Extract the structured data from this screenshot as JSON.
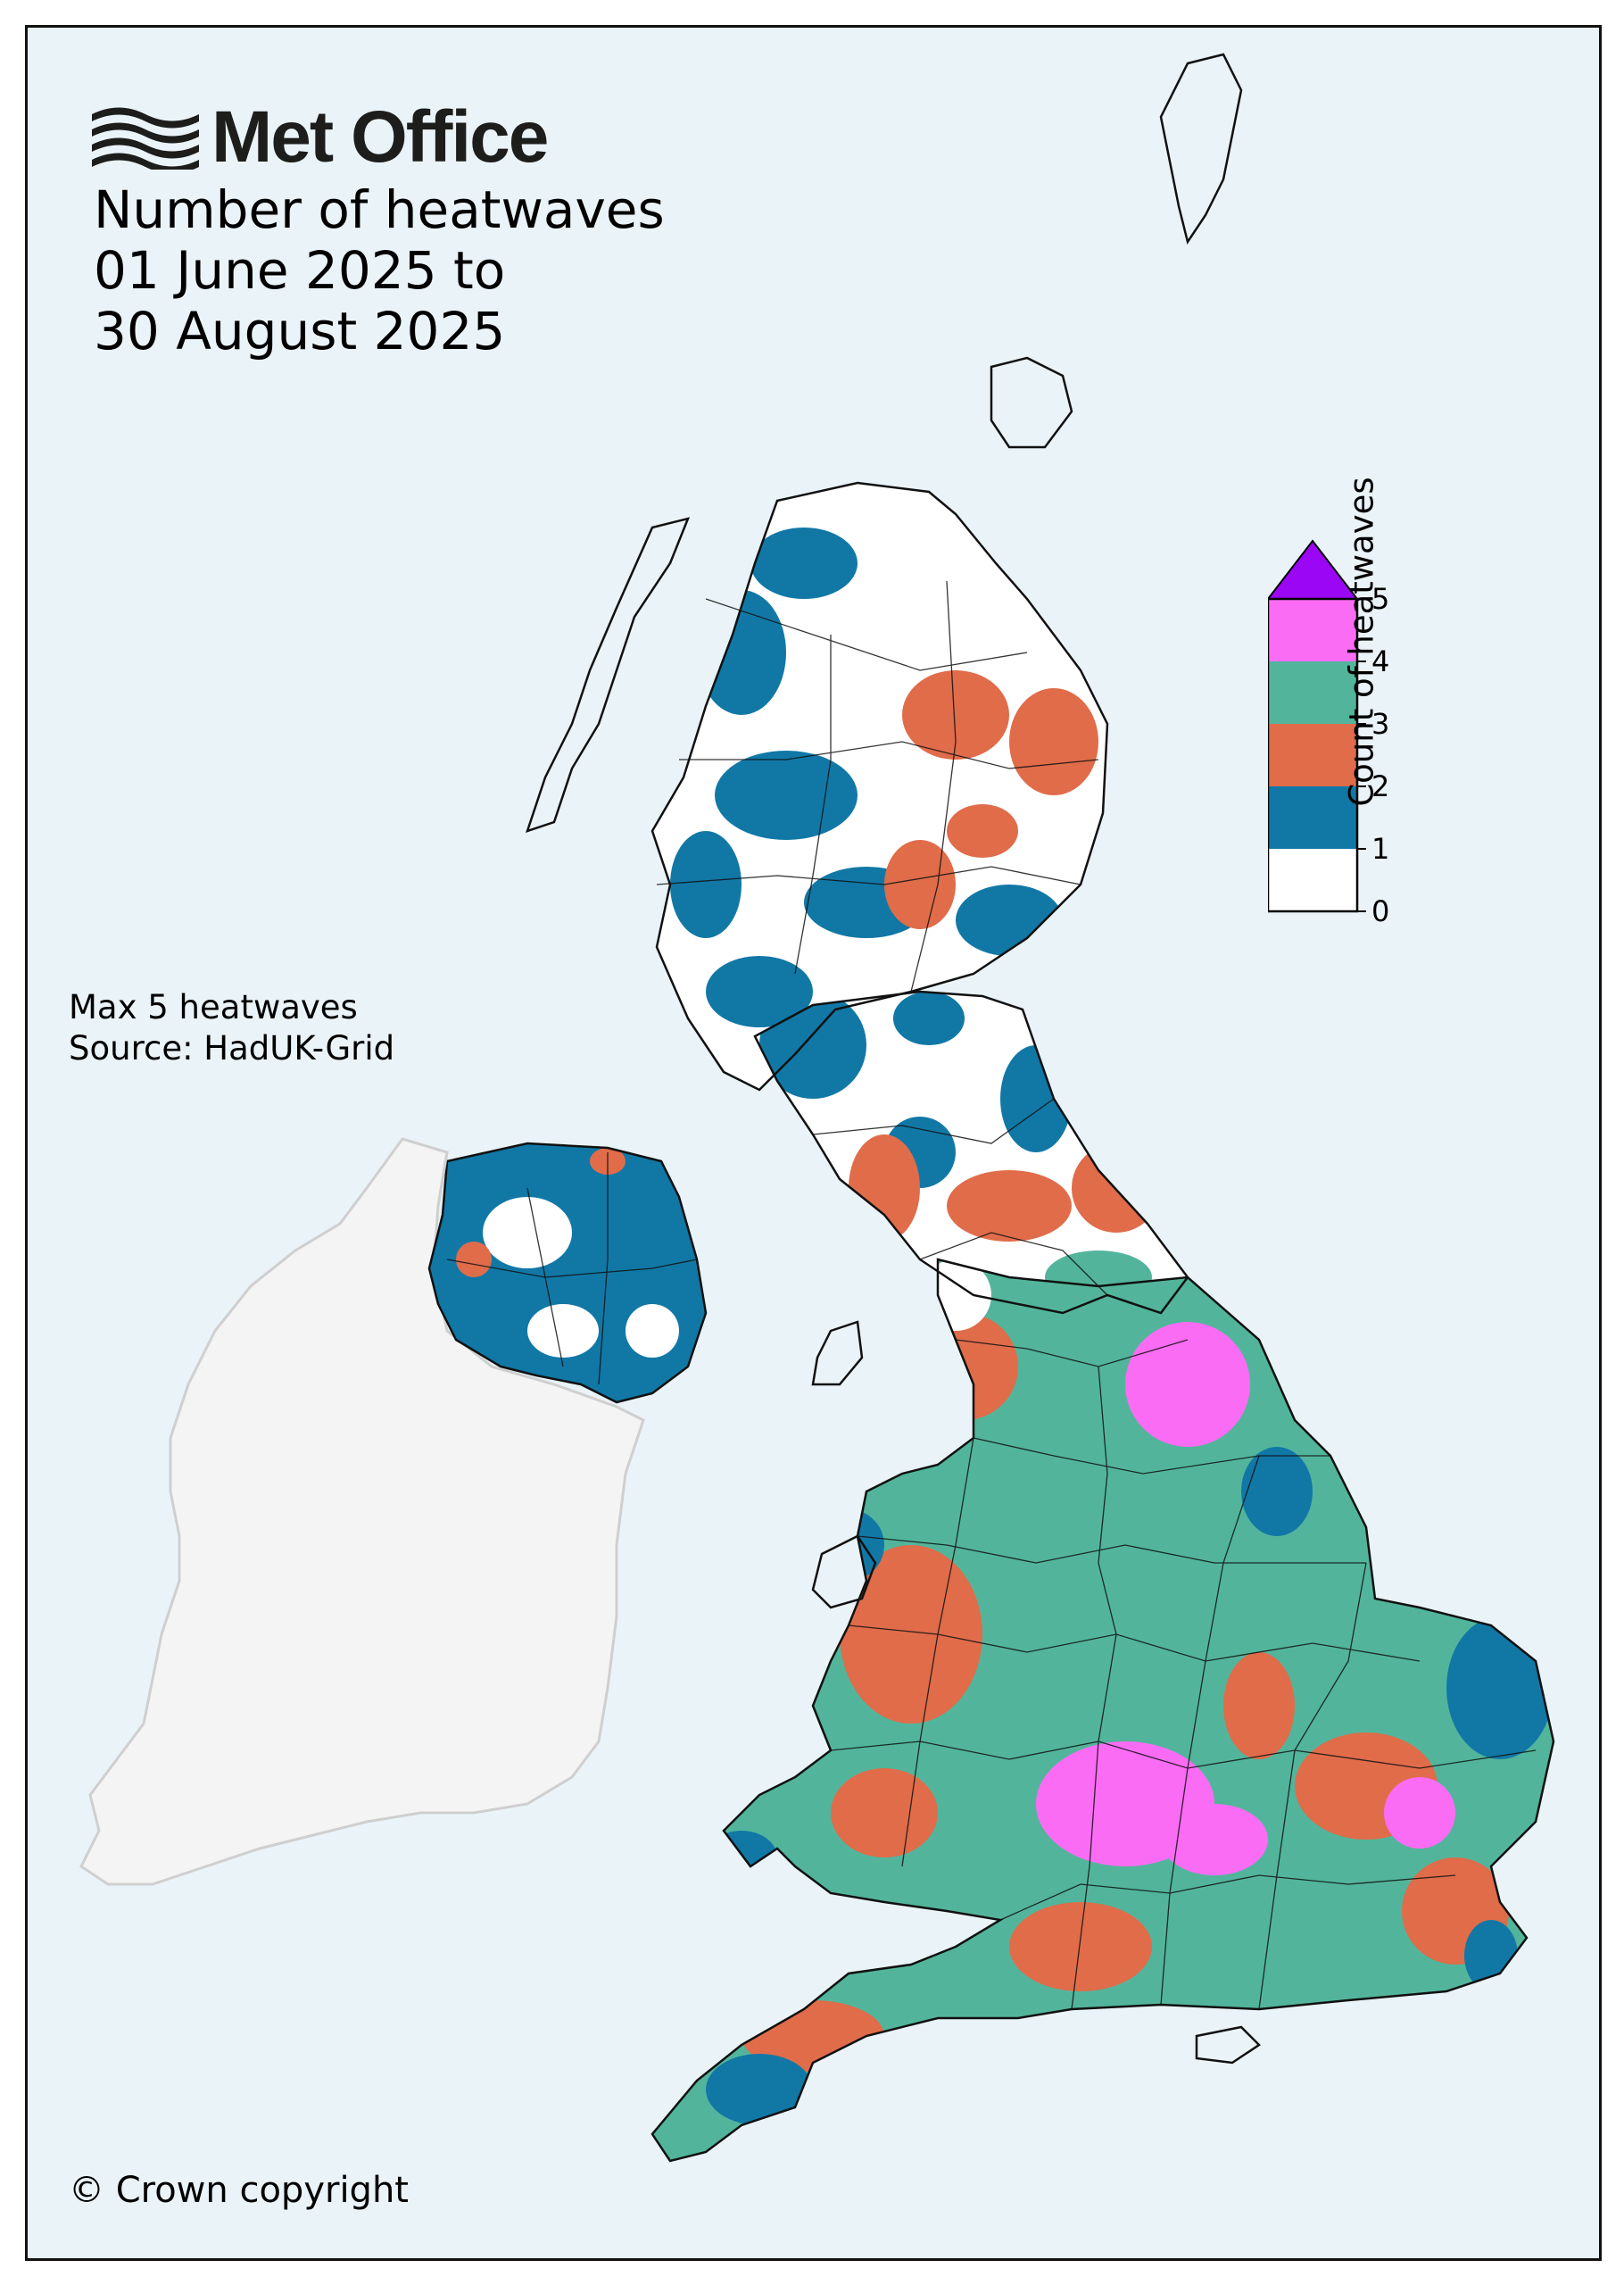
{
  "brand": {
    "logo_text": "Met Office"
  },
  "title": {
    "line1": "Number of heatwaves",
    "line2": "01 June 2025 to",
    "line3": "30 August 2025"
  },
  "notes": {
    "max": "Max 5 heatwaves",
    "source": "Source: HadUK-Grid"
  },
  "copyright": "© Crown copyright",
  "legend": {
    "label": "Count of heatwaves",
    "ticks": [
      "0",
      "1",
      "2",
      "3",
      "4",
      "5"
    ],
    "bins": [
      {
        "range": "0–1",
        "color": "#ffffff"
      },
      {
        "range": "1–2",
        "color": "#1178a6"
      },
      {
        "range": "2–3",
        "color": "#e06c4a"
      },
      {
        "range": "3–4",
        "color": "#52b59b"
      },
      {
        "range": "4–5",
        "color": "#fb6cf5"
      },
      {
        "range": ">5",
        "color": "#9b06f5"
      }
    ]
  },
  "colors": {
    "sea": "#eaf4f8",
    "ireland_land": "#f4f4f4",
    "boundary": "#111111"
  }
}
